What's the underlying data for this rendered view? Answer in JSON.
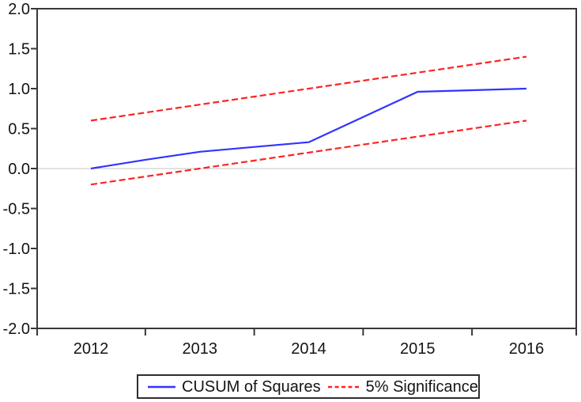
{
  "chart_data": {
    "type": "line",
    "title": "",
    "xlabel": "",
    "ylabel": "",
    "xlim": [
      2011.5,
      2016.46
    ],
    "ylim": [
      -2.0,
      2.0
    ],
    "grid": false,
    "zero_line": true,
    "legend_position": "bottom-center-boxed",
    "x_tick_years": [
      2012,
      2013,
      2014,
      2015,
      2016
    ],
    "x_tick_labels": [
      "2012",
      "2013",
      "2014",
      "2015",
      "2016"
    ],
    "y_tick_values": [
      2.0,
      1.5,
      1.0,
      0.5,
      0.0,
      -0.5,
      -1.0,
      -1.5,
      -2.0
    ],
    "y_tick_labels": [
      "2.0",
      "1.5",
      "1.0",
      "0.5",
      "0.0",
      "-0.5",
      "-1.0",
      "-1.5",
      "-2.0"
    ],
    "series": [
      {
        "name": "CUSUM of Squares",
        "color": "#3333ff",
        "style": "solid",
        "points": [
          [
            2012,
            0.0
          ],
          [
            2012.5,
            0.11
          ],
          [
            2013,
            0.21
          ],
          [
            2013.5,
            0.27
          ],
          [
            2014,
            0.33
          ],
          [
            2015,
            0.96
          ],
          [
            2016,
            1.0
          ]
        ]
      },
      {
        "name": "5% Significance (upper bound)",
        "color": "#ff2222",
        "style": "dashed",
        "points": [
          [
            2012,
            0.6
          ],
          [
            2016,
            1.4
          ]
        ]
      },
      {
        "name": "5% Significance (lower bound)",
        "color": "#ff2222",
        "style": "dashed",
        "points": [
          [
            2012,
            -0.2
          ],
          [
            2016,
            0.6
          ]
        ]
      }
    ],
    "legend": [
      {
        "label": "CUSUM of Squares",
        "color": "#3333ff",
        "style": "solid"
      },
      {
        "label": "5% Significance",
        "color": "#ff2222",
        "style": "dashed"
      }
    ],
    "colors": {
      "axis": "#383838",
      "zero_line": "#c4c4c4",
      "background": "#ffffff",
      "text": "#141414"
    }
  }
}
